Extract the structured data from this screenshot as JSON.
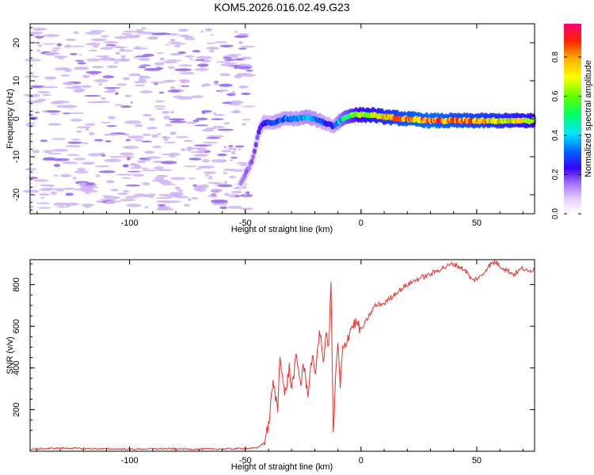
{
  "figure": {
    "title": "KOM5.2026.016.02.49.G23"
  },
  "chart_data": [
    {
      "type": "heatmap",
      "title": "KOM5.2026.016.02.49.G23",
      "xlabel": "Height of straight line (km)",
      "ylabel": "Frequency (Hz)",
      "xlim": [
        -143,
        75
      ],
      "ylim": [
        -25,
        25
      ],
      "xticks": [
        -100,
        -50,
        0,
        50
      ],
      "yticks": [
        -20,
        -10,
        0,
        10,
        20
      ],
      "colorbar": {
        "label": "Normalized spectral amplitude",
        "range": [
          0,
          0.97
        ],
        "ticks": [
          "0.0",
          "0.2",
          "0.4",
          "0.6",
          "0.8"
        ],
        "tick_values": [
          0,
          0.2,
          0.4,
          0.6,
          0.8
        ]
      },
      "ridge": {
        "description": "Doppler trace frequency vs height",
        "x": [
          -52,
          -47,
          -44,
          -42,
          -38,
          -33,
          -28,
          -23,
          -18,
          -14,
          -12,
          -8,
          -4,
          0,
          5,
          10,
          20,
          30,
          40,
          50,
          60,
          70,
          75
        ],
        "freq": [
          -17,
          -11,
          -3,
          -1,
          -1,
          0,
          0,
          0.5,
          -0.5,
          -1.5,
          -2,
          0,
          1,
          1,
          1,
          0.5,
          0,
          -0.5,
          -0.5,
          -0.5,
          -0.5,
          -0.5,
          -0.5
        ],
        "amplitude": [
          0.15,
          0.2,
          0.25,
          0.3,
          0.32,
          0.35,
          0.35,
          0.4,
          0.35,
          0.3,
          0.3,
          0.5,
          0.6,
          0.7,
          0.75,
          0.8,
          0.9,
          0.95,
          0.9,
          0.85,
          0.8,
          0.75,
          0.7
        ]
      }
    },
    {
      "type": "line",
      "xlabel": "Height of straight line (km)",
      "ylabel": "SNR (v/v)",
      "xlim": [
        -143,
        75
      ],
      "ylim": [
        0,
        920
      ],
      "xticks": [
        -100,
        -50,
        0,
        50
      ],
      "yticks": [
        200,
        400,
        600,
        800
      ],
      "series": [
        {
          "name": "SNR",
          "color": "#e8302a",
          "x": [
            -143,
            -130,
            -115,
            -100,
            -85,
            -70,
            -55,
            -45,
            -42,
            -40,
            -38,
            -36,
            -35,
            -33,
            -31,
            -30,
            -28,
            -26,
            -25,
            -23,
            -21,
            -20,
            -18,
            -16,
            -15,
            -14,
            -13,
            -12,
            -11,
            -10,
            -9,
            -8,
            -6,
            -4,
            -2,
            0,
            3,
            6,
            10,
            15,
            20,
            25,
            30,
            35,
            40,
            45,
            48,
            52,
            55,
            58,
            60,
            63,
            66,
            70,
            72,
            75
          ],
          "y": [
            10,
            15,
            12,
            10,
            12,
            10,
            12,
            15,
            40,
            120,
            330,
            200,
            480,
            260,
            400,
            300,
            450,
            320,
            420,
            280,
            470,
            350,
            580,
            420,
            600,
            480,
            820,
            80,
            350,
            520,
            300,
            480,
            540,
            600,
            620,
            580,
            640,
            700,
            710,
            760,
            800,
            830,
            850,
            880,
            900,
            870,
            820,
            840,
            890,
            910,
            890,
            870,
            850,
            880,
            860,
            880
          ]
        }
      ]
    }
  ]
}
